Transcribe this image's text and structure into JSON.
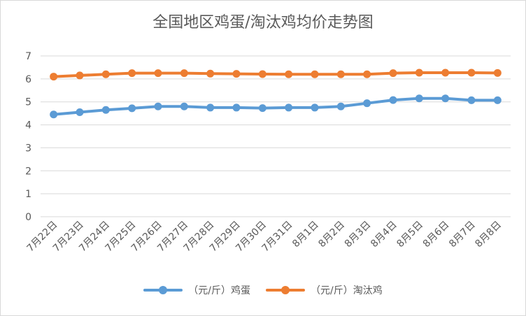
{
  "chart_data": {
    "type": "line",
    "title": "全国地区鸡蛋/淘汰鸡均价走势图",
    "categories": [
      "7月22日",
      "7月23日",
      "7月24日",
      "7月25日",
      "7月26日",
      "7月27日",
      "7月28日",
      "7月29日",
      "7月30日",
      "7月31日",
      "8月1日",
      "8月2日",
      "8月3日",
      "8月4日",
      "8月5日",
      "8月6日",
      "8月7日",
      "8月8日"
    ],
    "ylim": [
      0,
      7
    ],
    "yticks": [
      0,
      1,
      2,
      3,
      4,
      5,
      6,
      7
    ],
    "grid": true,
    "legend_position": "bottom",
    "series": [
      {
        "name": "（元/斤）鸡蛋",
        "color": "#5b9bd5",
        "values": [
          4.45,
          4.55,
          4.65,
          4.72,
          4.8,
          4.8,
          4.75,
          4.75,
          4.73,
          4.75,
          4.75,
          4.8,
          4.94,
          5.08,
          5.15,
          5.15,
          5.07,
          5.07
        ]
      },
      {
        "name": "（元/斤）淘汰鸡",
        "color": "#ed7d31",
        "values": [
          6.1,
          6.15,
          6.2,
          6.25,
          6.25,
          6.25,
          6.23,
          6.22,
          6.21,
          6.2,
          6.2,
          6.2,
          6.2,
          6.25,
          6.27,
          6.27,
          6.27,
          6.26
        ]
      }
    ]
  }
}
